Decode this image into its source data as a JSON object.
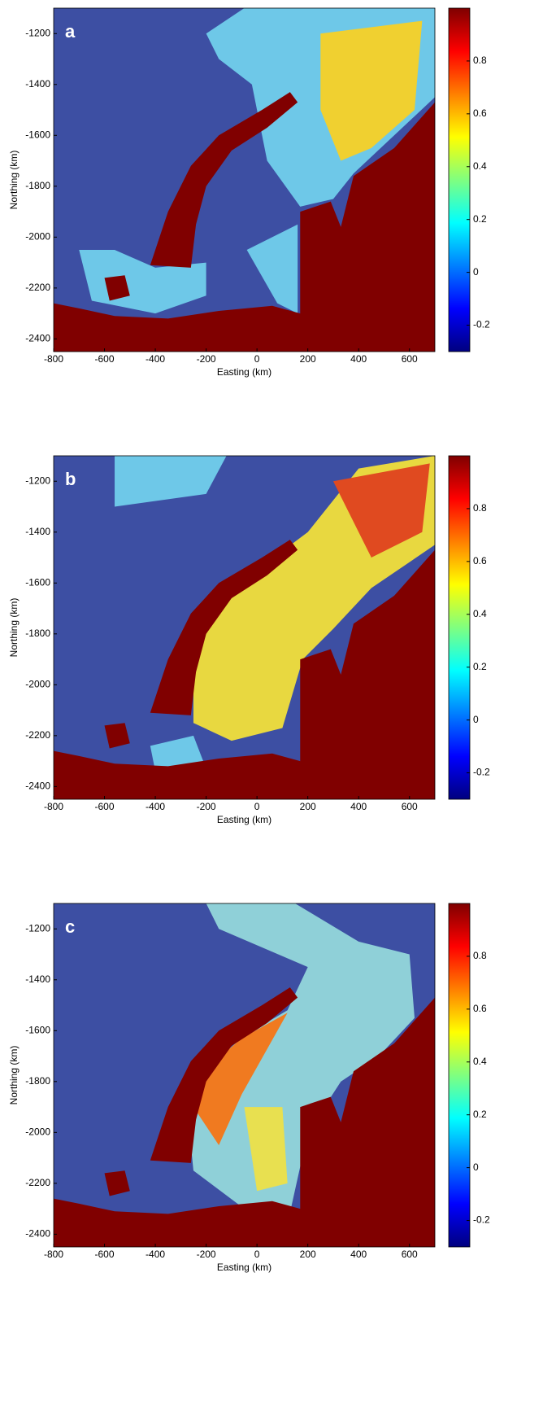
{
  "chart_data": [
    {
      "type": "heatmap",
      "label": "a",
      "xlabel": "Easting (km)",
      "ylabel": "Northing (km)",
      "xlim": [
        -800,
        700
      ],
      "xticks": [
        -800,
        -600,
        -400,
        -200,
        0,
        200,
        400,
        600
      ],
      "ylim": [
        -2450,
        -1100
      ],
      "yticks": [
        -2400,
        -2200,
        -2000,
        -1800,
        -1600,
        -1400,
        -1200
      ],
      "colormap": "jet",
      "clim": [
        -0.3,
        1
      ],
      "cticks": [
        -0.2,
        0,
        0.2,
        0.4,
        0.6,
        0.8
      ]
    },
    {
      "type": "heatmap",
      "label": "b",
      "xlabel": "Easting (km)",
      "ylabel": "Northing (km)",
      "xlim": [
        -800,
        700
      ],
      "xticks": [
        -800,
        -600,
        -400,
        -200,
        0,
        200,
        400,
        600
      ],
      "ylim": [
        -2450,
        -1100
      ],
      "yticks": [
        -2400,
        -2200,
        -2000,
        -1800,
        -1600,
        -1400,
        -1200
      ],
      "colormap": "jet",
      "clim": [
        -0.3,
        1
      ],
      "cticks": [
        -0.2,
        0,
        0.2,
        0.4,
        0.6,
        0.8
      ]
    },
    {
      "type": "heatmap",
      "label": "c",
      "xlabel": "Easting (km)",
      "ylabel": "Northing (km)",
      "xlim": [
        -800,
        700
      ],
      "xticks": [
        -800,
        -600,
        -400,
        -200,
        0,
        200,
        400,
        600
      ],
      "ylim": [
        -2450,
        -1100
      ],
      "yticks": [
        -2400,
        -2200,
        -2000,
        -1800,
        -1600,
        -1400,
        -1200
      ],
      "colormap": "jet",
      "clim": [
        -0.3,
        1
      ],
      "cticks": [
        -0.2,
        0,
        0.2,
        0.4,
        0.6,
        0.8
      ]
    }
  ]
}
